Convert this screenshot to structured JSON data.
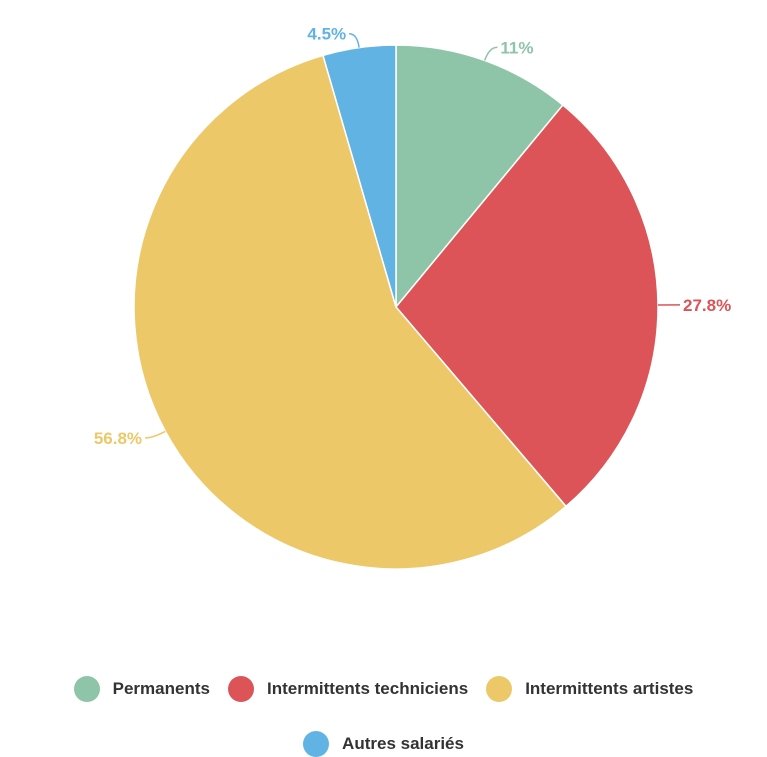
{
  "chart_data": {
    "type": "pie",
    "categories": [
      "Permanents",
      "Intermittents techniciens",
      "Intermittents artistes",
      "Autres salariés"
    ],
    "values": [
      11,
      27.8,
      56.8,
      4.5
    ],
    "labels": [
      "11%",
      "27.8%",
      "56.8%",
      "4.5%"
    ],
    "colors": [
      "#8ec4a8",
      "#dc5457",
      "#ecc869",
      "#60b3e3"
    ],
    "legend_position": "bottom",
    "start_angle": "12 o'clock",
    "direction": "clockwise"
  }
}
